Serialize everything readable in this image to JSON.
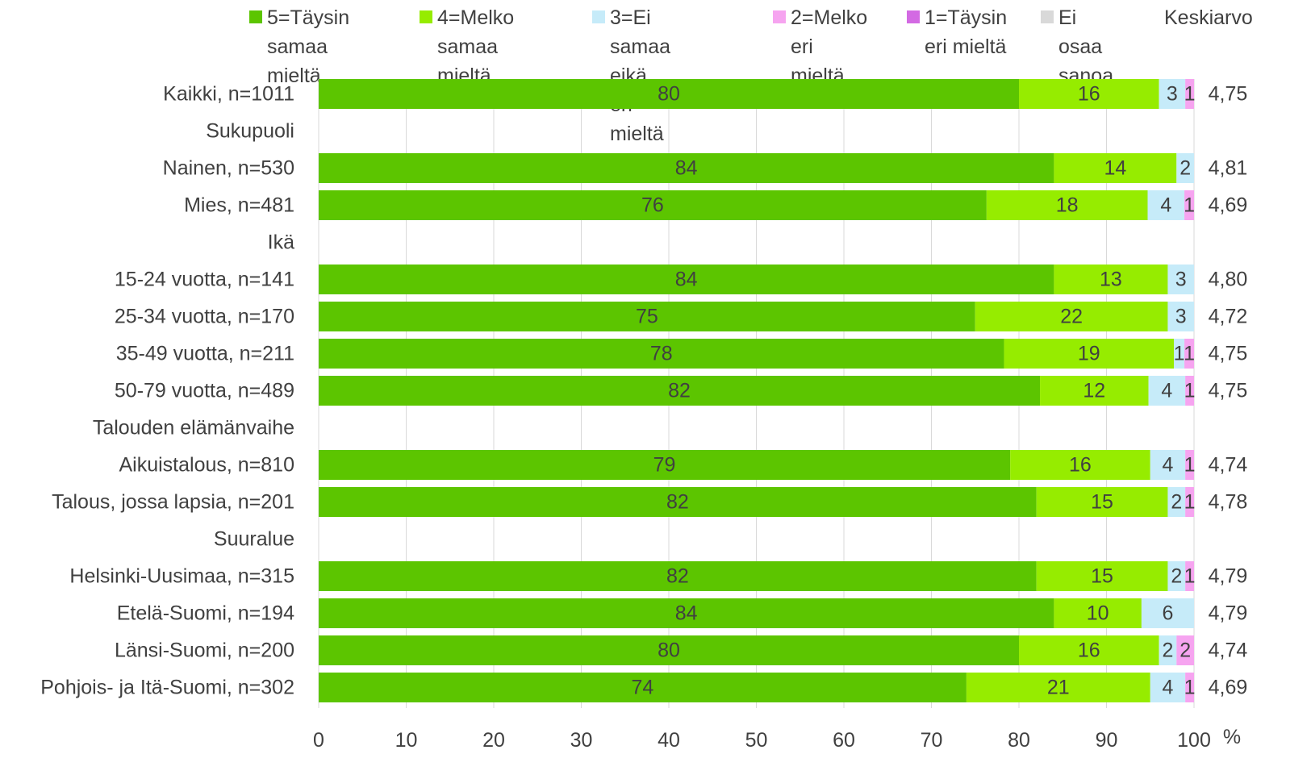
{
  "legend": {
    "items": [
      {
        "label": "5=Täysin\nsamaa mieltä",
        "color": "#5cc500"
      },
      {
        "label": "4=Melko\nsamaa mieltä",
        "color": "#96ec00"
      },
      {
        "label": "3=Ei samaa\neikä eri mieltä",
        "color": "#c6ebf9"
      },
      {
        "label": "2=Melko\neri mieltä",
        "color": "#f6a4f0"
      },
      {
        "label": "1=Täysin\neri mieltä",
        "color": "#d36ae3"
      },
      {
        "label": "Ei osaa\nsanoa",
        "color": "#d9d9d9"
      }
    ],
    "mean_header": "Keskiarvo"
  },
  "chart_data": {
    "type": "bar",
    "orientation": "horizontal",
    "stacked": true,
    "x_range": [
      0,
      100
    ],
    "x_ticks": [
      0,
      10,
      20,
      30,
      40,
      50,
      60,
      70,
      80,
      90,
      100
    ],
    "x_unit": "%",
    "grid": true,
    "legend_position": "top",
    "series_names": [
      "5=Täysin samaa mieltä",
      "4=Melko samaa mieltä",
      "3=Ei samaa eikä eri mieltä",
      "2=Melko eri mieltä",
      "1=Täysin eri mieltä",
      "Ei osaa sanoa"
    ],
    "rows": [
      {
        "label": "Kaikki, n=1011",
        "values": [
          80,
          16,
          3,
          1,
          0,
          0
        ],
        "labels": [
          "80",
          "16",
          "3",
          "1",
          "",
          ""
        ],
        "mean": "4,75"
      },
      {
        "label": "Sukupuoli",
        "header": true
      },
      {
        "label": "Nainen, n=530",
        "values": [
          84,
          14,
          2,
          0,
          0,
          0
        ],
        "labels": [
          "84",
          "14",
          "2",
          "",
          "",
          ""
        ],
        "mean": "4,81"
      },
      {
        "label": "Mies, n=481",
        "values": [
          76.3,
          18.4,
          4.2,
          1.1,
          0,
          0
        ],
        "labels": [
          "76",
          "18",
          "4",
          "1",
          "",
          ""
        ],
        "mean": "4,69"
      },
      {
        "label": "Ikä",
        "header": true
      },
      {
        "label": "15-24 vuotta, n=141",
        "values": [
          84,
          13,
          3,
          0,
          0,
          0
        ],
        "labels": [
          "84",
          "13",
          "3",
          "",
          "",
          ""
        ],
        "mean": "4,80"
      },
      {
        "label": "25-34 vuotta, n=170",
        "values": [
          75,
          22,
          3,
          0,
          0,
          0
        ],
        "labels": [
          "75",
          "22",
          "3",
          "",
          "",
          ""
        ],
        "mean": "4,72"
      },
      {
        "label": "35-49 vuotta, n=211",
        "values": [
          78.3,
          19.4,
          1.2,
          1.1,
          0,
          0
        ],
        "labels": [
          "78",
          "19",
          "1",
          "1",
          "",
          ""
        ],
        "mean": "4,75"
      },
      {
        "label": "50-79 vuotta, n=489",
        "values": [
          82.4,
          12.4,
          4.2,
          1,
          0,
          0
        ],
        "labels": [
          "82",
          "12",
          "4",
          "1",
          "",
          ""
        ],
        "mean": "4,75"
      },
      {
        "label": "Talouden elämänvaihe",
        "header": true
      },
      {
        "label": "Aikuistalous, n=810",
        "values": [
          79,
          16,
          4,
          1,
          0,
          0
        ],
        "labels": [
          "79",
          "16",
          "4",
          "1",
          "",
          ""
        ],
        "mean": "4,74"
      },
      {
        "label": "Talous, jossa lapsia, n=201",
        "values": [
          82,
          15,
          2,
          1,
          0,
          0
        ],
        "labels": [
          "82",
          "15",
          "2",
          "1",
          "",
          ""
        ],
        "mean": "4,78"
      },
      {
        "label": "Suuralue",
        "header": true
      },
      {
        "label": "Helsinki-Uusimaa, n=315",
        "values": [
          82,
          15,
          2,
          1,
          0,
          0
        ],
        "labels": [
          "82",
          "15",
          "2",
          "1",
          "",
          ""
        ],
        "mean": "4,79"
      },
      {
        "label": "Etelä-Suomi, n=194",
        "values": [
          84,
          10,
          6,
          0,
          0,
          0
        ],
        "labels": [
          "84",
          "10",
          "6",
          "",
          "",
          ""
        ],
        "mean": "4,79"
      },
      {
        "label": "Länsi-Suomi, n=200",
        "values": [
          80,
          16,
          2,
          2,
          0,
          0
        ],
        "labels": [
          "80",
          "16",
          "2",
          "2",
          "",
          ""
        ],
        "mean": "4,74"
      },
      {
        "label": "Pohjois- ja Itä-Suomi, n=302",
        "values": [
          74,
          21,
          4,
          1,
          0,
          0
        ],
        "labels": [
          "74",
          "21",
          "4",
          "1",
          "",
          ""
        ],
        "mean": "4,69"
      }
    ]
  }
}
